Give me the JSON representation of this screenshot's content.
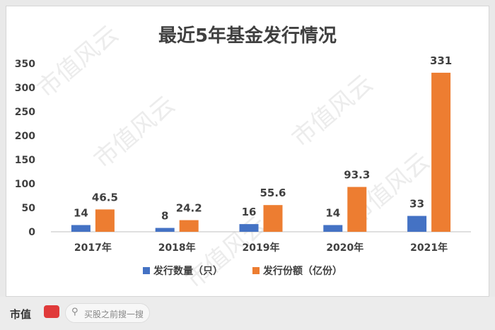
{
  "chart_data": {
    "type": "bar",
    "title": "最近5年基金发行情况",
    "categories": [
      "2017年",
      "2018年",
      "2019年",
      "2020年",
      "2021年"
    ],
    "series": [
      {
        "name": "发行数量（只）",
        "values": [
          14,
          8,
          16,
          14,
          33
        ],
        "labels": [
          "14",
          "8",
          "16",
          "14",
          "33"
        ],
        "color": "#4472c4"
      },
      {
        "name": "发行份额（亿份）",
        "values": [
          46.5,
          24.2,
          55.6,
          93.3,
          331
        ],
        "labels": [
          "46.5",
          "24.2",
          "55.6",
          "93.3",
          "331"
        ],
        "color": "#ed7d31"
      }
    ],
    "ylim": [
      0,
      350
    ],
    "yticks": [
      0,
      50,
      100,
      150,
      200,
      250,
      300,
      350
    ],
    "grid": false,
    "legend_position": "bottom"
  },
  "footer": {
    "brand": "市值",
    "search_placeholder": "买股之前搜一搜"
  },
  "watermark_text": "市值风云"
}
